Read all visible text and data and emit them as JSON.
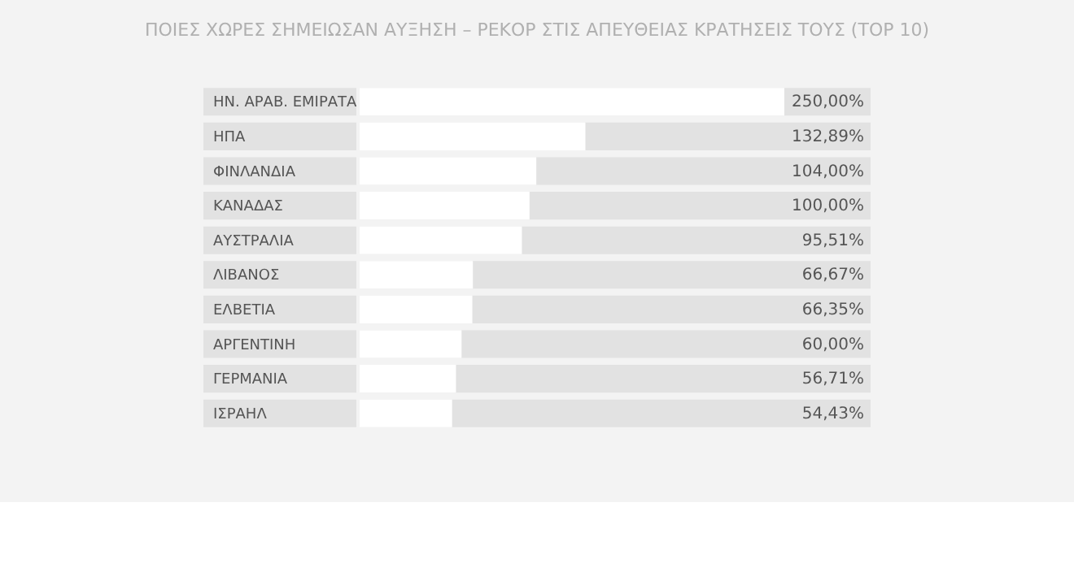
{
  "chart_data": {
    "type": "bar",
    "orientation": "horizontal",
    "title": "ΠΟΙΕΣ ΧΩΡΕΣ ΣΗΜΕΙΩΣΑΝ ΑΥΞΗΣΗ – ΡΕΚΟΡ ΣΤΙΣ ΑΠΕΥΘΕΙΑΣ ΚΡΑΤΗΣΕΙΣ ΤΟΥΣ (TOP 10)",
    "categories": [
      "ΗΝ. ΑΡΑΒ. ΕΜΙΡΑΤΑ",
      "ΗΠΑ",
      "ΦΙΝΛΑΝΔΙΑ",
      "ΚΑΝΑΔΑΣ",
      "ΑΥΣΤΡΑΛΙΑ",
      "ΛΙΒΑΝΟΣ",
      "ΕΛΒΕΤΙΑ",
      "ΑΡΓΕΝΤΙΝΗ",
      "ΓΕΡΜΑΝΙΑ",
      "ΙΣΡΑΗΛ"
    ],
    "values": [
      250.0,
      132.89,
      104.0,
      100.0,
      95.51,
      66.67,
      66.35,
      60.0,
      56.71,
      54.43
    ],
    "value_labels": [
      "250,00%",
      "132,89%",
      "104,00%",
      "100,00%",
      "95,51%",
      "66,67%",
      "66,35%",
      "60,00%",
      "56,71%",
      "54,43%"
    ],
    "color": "#ffffff"
  }
}
